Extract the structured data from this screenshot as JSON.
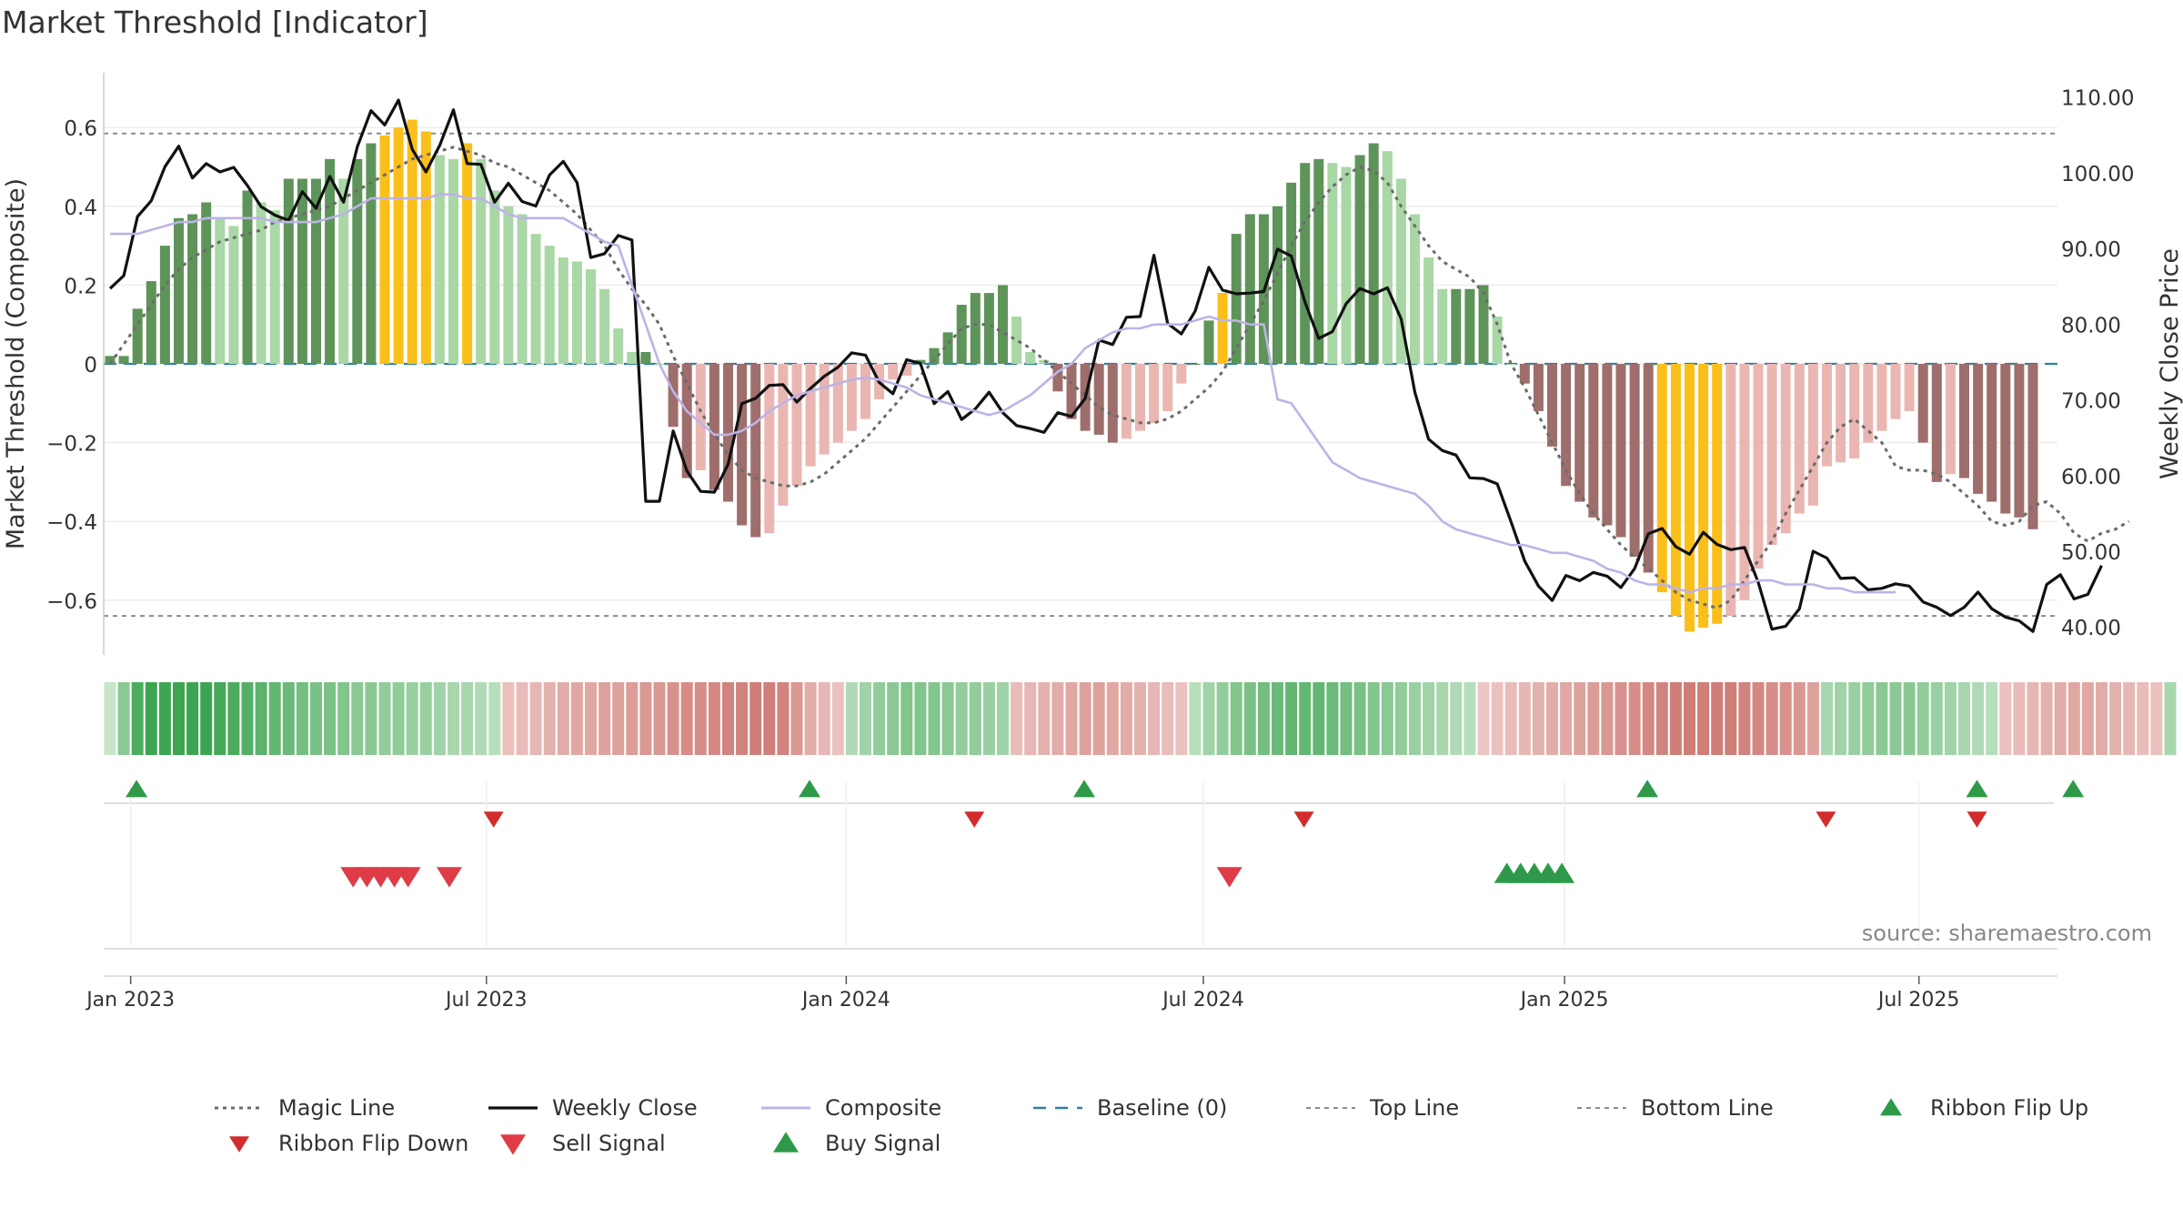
{
  "chart_data": {
    "type": "bar+line",
    "title": "Market Threshold [Indicator]",
    "source": "source: sharemaestro.com",
    "y_left": {
      "label": "Market Threshold (Composite)",
      "ylim": [
        -0.74,
        0.74
      ],
      "ticks": [
        -0.6,
        -0.4,
        -0.2,
        0,
        0.2,
        0.4,
        0.6
      ],
      "tick_labels": [
        "−0.6",
        "−0.4",
        "−0.2",
        "0",
        "0.2",
        "0.4",
        "0.6"
      ]
    },
    "y_right": {
      "label": "Weekly Close Price",
      "ylim": [
        36.3,
        113.2
      ],
      "ticks": [
        40,
        50,
        60,
        70,
        80,
        90,
        100,
        110
      ],
      "tick_labels": [
        "40.00",
        "50.00",
        "60.00",
        "70.00",
        "80.00",
        "90.00",
        "100.00",
        "110.00"
      ]
    },
    "x_axis": {
      "start": "2022-12-26",
      "weeks": 143,
      "ticks": [
        {
          "week": 1.5,
          "label": "Jan 2023"
        },
        {
          "week": 27.4,
          "label": "Jul 2023"
        },
        {
          "week": 53.6,
          "label": "Jan 2024"
        },
        {
          "week": 79.6,
          "label": "Jul 2024"
        },
        {
          "week": 105.9,
          "label": "Jan 2025"
        },
        {
          "week": 131.7,
          "label": "Jul 2025"
        }
      ]
    },
    "reference_lines": {
      "top_line": 0.585,
      "bottom_line": -0.64,
      "baseline": 0
    },
    "composite_bars": {
      "values": [
        0.02,
        0.02,
        0.14,
        0.21,
        0.3,
        0.37,
        0.38,
        0.41,
        0.37,
        0.35,
        0.44,
        0.41,
        0.39,
        0.47,
        0.47,
        0.47,
        0.52,
        0.47,
        0.52,
        0.56,
        0.58,
        0.6,
        0.62,
        0.59,
        0.53,
        0.52,
        0.56,
        0.52,
        0.44,
        0.4,
        0.38,
        0.33,
        0.3,
        0.27,
        0.26,
        0.24,
        0.19,
        0.09,
        0.03,
        0.03,
        0.0,
        -0.16,
        -0.29,
        -0.27,
        -0.32,
        -0.35,
        -0.41,
        -0.44,
        -0.43,
        -0.36,
        -0.31,
        -0.26,
        -0.23,
        -0.2,
        -0.17,
        -0.14,
        -0.09,
        -0.04,
        -0.03,
        0.01,
        0.04,
        0.08,
        0.15,
        0.18,
        0.18,
        0.2,
        0.12,
        0.03,
        0.01,
        -0.07,
        -0.14,
        -0.17,
        -0.18,
        -0.2,
        -0.19,
        -0.17,
        -0.15,
        -0.12,
        -0.05,
        0.0,
        0.11,
        0.18,
        0.33,
        0.38,
        0.38,
        0.4,
        0.46,
        0.51,
        0.52,
        0.51,
        0.5,
        0.53,
        0.56,
        0.54,
        0.47,
        0.38,
        0.27,
        0.19,
        0.19,
        0.19,
        0.2,
        0.12,
        0.0,
        -0.05,
        -0.12,
        -0.21,
        -0.31,
        -0.35,
        -0.39,
        -0.41,
        -0.44,
        -0.49,
        -0.53,
        -0.58,
        -0.64,
        -0.68,
        -0.67,
        -0.66,
        -0.64,
        -0.6,
        -0.52,
        -0.46,
        -0.43,
        -0.38,
        -0.36,
        -0.26,
        -0.25,
        -0.24,
        -0.2,
        -0.17,
        -0.14,
        -0.12,
        -0.2,
        -0.3,
        -0.28,
        -0.29,
        -0.33,
        -0.35,
        -0.38,
        -0.39,
        -0.42
      ],
      "signal_weeks": [
        20,
        21,
        22,
        23,
        26,
        81,
        113,
        114,
        115,
        116,
        117
      ],
      "colors": {
        "positive_dark": "#5e9459",
        "positive_light": "#a9d7a6",
        "negative_dark": "#9e6e6c",
        "negative_light": "#eab6b2",
        "signal": "#fbbf1a"
      }
    },
    "series": [
      {
        "name": "Magic Line",
        "style": "dotted",
        "color": "#6b6b6b",
        "axis": "left",
        "values": [
          0.0,
          0.05,
          0.1,
          0.15,
          0.2,
          0.24,
          0.27,
          0.29,
          0.31,
          0.32,
          0.33,
          0.34,
          0.36,
          0.37,
          0.38,
          0.39,
          0.4,
          0.42,
          0.44,
          0.46,
          0.48,
          0.5,
          0.52,
          0.53,
          0.54,
          0.55,
          0.54,
          0.53,
          0.51,
          0.5,
          0.48,
          0.46,
          0.44,
          0.41,
          0.38,
          0.34,
          0.3,
          0.24,
          0.19,
          0.15,
          0.1,
          0.02,
          -0.05,
          -0.12,
          -0.18,
          -0.23,
          -0.27,
          -0.29,
          -0.3,
          -0.31,
          -0.31,
          -0.3,
          -0.28,
          -0.25,
          -0.22,
          -0.19,
          -0.15,
          -0.11,
          -0.07,
          -0.03,
          0.01,
          0.05,
          0.09,
          0.1,
          0.1,
          0.08,
          0.06,
          0.04,
          0.01,
          -0.02,
          -0.05,
          -0.08,
          -0.11,
          -0.13,
          -0.14,
          -0.15,
          -0.15,
          -0.14,
          -0.12,
          -0.09,
          -0.06,
          -0.02,
          0.04,
          0.1,
          0.16,
          0.23,
          0.3,
          0.36,
          0.41,
          0.45,
          0.48,
          0.5,
          0.49,
          0.46,
          0.4,
          0.35,
          0.3,
          0.26,
          0.24,
          0.22,
          0.18,
          0.1,
          0.0,
          -0.06,
          -0.13,
          -0.2,
          -0.27,
          -0.33,
          -0.38,
          -0.42,
          -0.46,
          -0.49,
          -0.52,
          -0.55,
          -0.58,
          -0.6,
          -0.61,
          -0.62,
          -0.6,
          -0.55,
          -0.5,
          -0.45,
          -0.38,
          -0.32,
          -0.26,
          -0.2,
          -0.16,
          -0.14,
          -0.17,
          -0.2,
          -0.26,
          -0.27,
          -0.27,
          -0.28,
          -0.3,
          -0.33,
          -0.36,
          -0.4,
          -0.41,
          -0.4,
          -0.36,
          -0.35,
          -0.38,
          -0.43,
          -0.45,
          -0.43,
          -0.42,
          -0.4
        ]
      },
      {
        "name": "Weekly Close",
        "style": "solid",
        "color": "#111111",
        "axis": "right",
        "values": [
          84.7,
          86.4,
          94.2,
          96.3,
          100.8,
          103.5,
          99.3,
          101.2,
          100.1,
          100.7,
          98.3,
          95.5,
          94.4,
          93.7,
          97.5,
          95.3,
          99.5,
          96.1,
          103.4,
          108.2,
          106.3,
          109.6,
          103.1,
          100.1,
          103.6,
          108.3,
          101.2,
          101.1,
          96.1,
          98.6,
          96.2,
          95.6,
          99.7,
          101.5,
          98.7,
          88.8,
          89.3,
          91.7,
          91.1,
          56.6,
          56.6,
          65.9,
          60.6,
          57.9,
          57.8,
          61.5,
          69.5,
          70.2,
          71.9,
          72.0,
          69.7,
          71.5,
          73.1,
          74.3,
          76.2,
          75.9,
          72.3,
          70.8,
          75.3,
          74.8,
          69.5,
          71.1,
          67.4,
          68.8,
          71.0,
          68.3,
          66.6,
          66.2,
          65.7,
          68.3,
          67.8,
          70.2,
          77.9,
          77.3,
          80.9,
          81.0,
          89.1,
          80.1,
          78.7,
          81.7,
          87.5,
          84.5,
          84.0,
          84.1,
          84.3,
          89.9,
          89.0,
          82.9,
          78.1,
          79.0,
          82.7,
          84.7,
          84.0,
          84.8,
          80.7,
          71.0,
          64.8,
          63.3,
          62.7,
          59.7,
          59.6,
          58.9,
          53.9,
          48.7,
          45.4,
          43.5,
          46.8,
          46.1,
          47.2,
          46.7,
          45.2,
          47.7,
          52.3,
          53.0,
          50.6,
          49.6,
          52.5,
          50.9,
          50.2,
          50.5,
          45.9,
          39.7,
          40.1,
          42.4,
          50.0,
          49.1,
          46.4,
          46.5,
          44.9,
          45.1,
          45.7,
          45.4,
          43.3,
          42.6,
          41.5,
          42.6,
          44.6,
          42.4,
          41.3,
          40.8,
          39.4,
          45.6,
          46.9,
          43.7,
          44.3,
          48.1
        ]
      },
      {
        "name": "Composite",
        "style": "solid",
        "color": "#bdb3e6",
        "axis": "left",
        "values": [
          0.33,
          0.33,
          0.33,
          0.34,
          0.35,
          0.36,
          0.36,
          0.37,
          0.37,
          0.37,
          0.37,
          0.37,
          0.36,
          0.36,
          0.36,
          0.36,
          0.37,
          0.38,
          0.4,
          0.42,
          0.42,
          0.42,
          0.42,
          0.42,
          0.43,
          0.43,
          0.42,
          0.42,
          0.4,
          0.38,
          0.37,
          0.37,
          0.37,
          0.37,
          0.35,
          0.33,
          0.31,
          0.3,
          0.2,
          0.1,
          0.0,
          -0.07,
          -0.12,
          -0.15,
          -0.18,
          -0.18,
          -0.17,
          -0.15,
          -0.12,
          -0.1,
          -0.08,
          -0.07,
          -0.06,
          -0.05,
          -0.04,
          -0.035,
          -0.04,
          -0.05,
          -0.06,
          -0.08,
          -0.09,
          -0.1,
          -0.11,
          -0.12,
          -0.13,
          -0.12,
          -0.1,
          -0.08,
          -0.05,
          -0.02,
          0.0,
          0.04,
          0.06,
          0.08,
          0.09,
          0.09,
          0.1,
          0.1,
          0.1,
          0.11,
          0.12,
          0.11,
          0.11,
          0.1,
          0.1,
          -0.09,
          -0.1,
          -0.15,
          -0.2,
          -0.25,
          -0.27,
          -0.29,
          -0.3,
          -0.31,
          -0.32,
          -0.33,
          -0.36,
          -0.4,
          -0.42,
          -0.43,
          -0.44,
          -0.45,
          -0.46,
          -0.46,
          -0.47,
          -0.48,
          -0.48,
          -0.49,
          -0.5,
          -0.52,
          -0.53,
          -0.55,
          -0.56,
          -0.56,
          -0.57,
          -0.58,
          -0.57,
          -0.57,
          -0.56,
          -0.56,
          -0.55,
          -0.55,
          -0.56,
          -0.56,
          -0.56,
          -0.57,
          -0.57,
          -0.58,
          -0.58,
          -0.58,
          -0.58
        ]
      }
    ],
    "ribbon": {
      "values": [
        0.1,
        0.5,
        0.9,
        1,
        1,
        1,
        1,
        1,
        0.95,
        0.9,
        0.85,
        0.8,
        0.75,
        0.7,
        0.65,
        0.6,
        0.6,
        0.55,
        0.5,
        0.5,
        0.45,
        0.45,
        0.4,
        0.4,
        0.35,
        0.3,
        0.3,
        0.25,
        0.2,
        -0.2,
        -0.25,
        -0.3,
        -0.35,
        -0.4,
        -0.45,
        -0.45,
        -0.5,
        -0.5,
        -0.55,
        -0.6,
        -0.6,
        -0.65,
        -0.7,
        -0.7,
        -0.75,
        -0.8,
        -0.8,
        -0.85,
        -0.85,
        -0.8,
        -0.6,
        -0.4,
        -0.3,
        -0.2,
        0.25,
        0.35,
        0.45,
        0.5,
        0.55,
        0.55,
        0.55,
        0.5,
        0.45,
        0.45,
        0.4,
        0.35,
        -0.25,
        -0.3,
        -0.35,
        -0.4,
        -0.45,
        -0.5,
        -0.5,
        -0.45,
        -0.4,
        -0.35,
        -0.3,
        -0.25,
        -0.2,
        0.2,
        0.35,
        0.45,
        0.55,
        0.6,
        0.65,
        0.7,
        0.75,
        0.75,
        0.75,
        0.7,
        0.65,
        0.6,
        0.55,
        0.5,
        0.45,
        0.4,
        0.35,
        0.3,
        0.25,
        0.2,
        -0.15,
        -0.2,
        -0.25,
        -0.3,
        -0.35,
        -0.4,
        -0.45,
        -0.5,
        -0.55,
        -0.6,
        -0.65,
        -0.7,
        -0.75,
        -0.8,
        -0.85,
        -0.85,
        -0.85,
        -0.85,
        -0.85,
        -0.8,
        -0.75,
        -0.7,
        -0.65,
        -0.6,
        -0.5,
        0.3,
        0.35,
        0.4,
        0.45,
        0.5,
        0.5,
        0.5,
        0.45,
        0.4,
        0.35,
        0.3,
        0.25,
        0.2,
        -0.2,
        -0.25,
        -0.3,
        -0.35,
        -0.4,
        -0.45,
        -0.45,
        -0.4,
        -0.35,
        -0.3,
        -0.25,
        -0.2,
        0.3
      ]
    },
    "markers": {
      "ribbon_flip_up": [
        1,
        50,
        70,
        111,
        135,
        142
      ],
      "ribbon_flip_down": [
        27,
        62,
        86,
        124,
        135
      ],
      "sell_signal": [
        17.7,
        18.7,
        19.7,
        20.7,
        21.7,
        24.7,
        81.5
      ],
      "buy_signal": [
        101.7,
        102.7,
        103.7,
        104.7,
        105.7
      ]
    },
    "legend": {
      "placement": "bottom",
      "entries": [
        "Magic Line",
        "Weekly Close",
        "Composite",
        "Baseline (0)",
        "Top Line",
        "Bottom Line",
        "Ribbon Flip Up",
        "Ribbon Flip Down",
        "Sell Signal",
        "Buy Signal"
      ]
    }
  }
}
